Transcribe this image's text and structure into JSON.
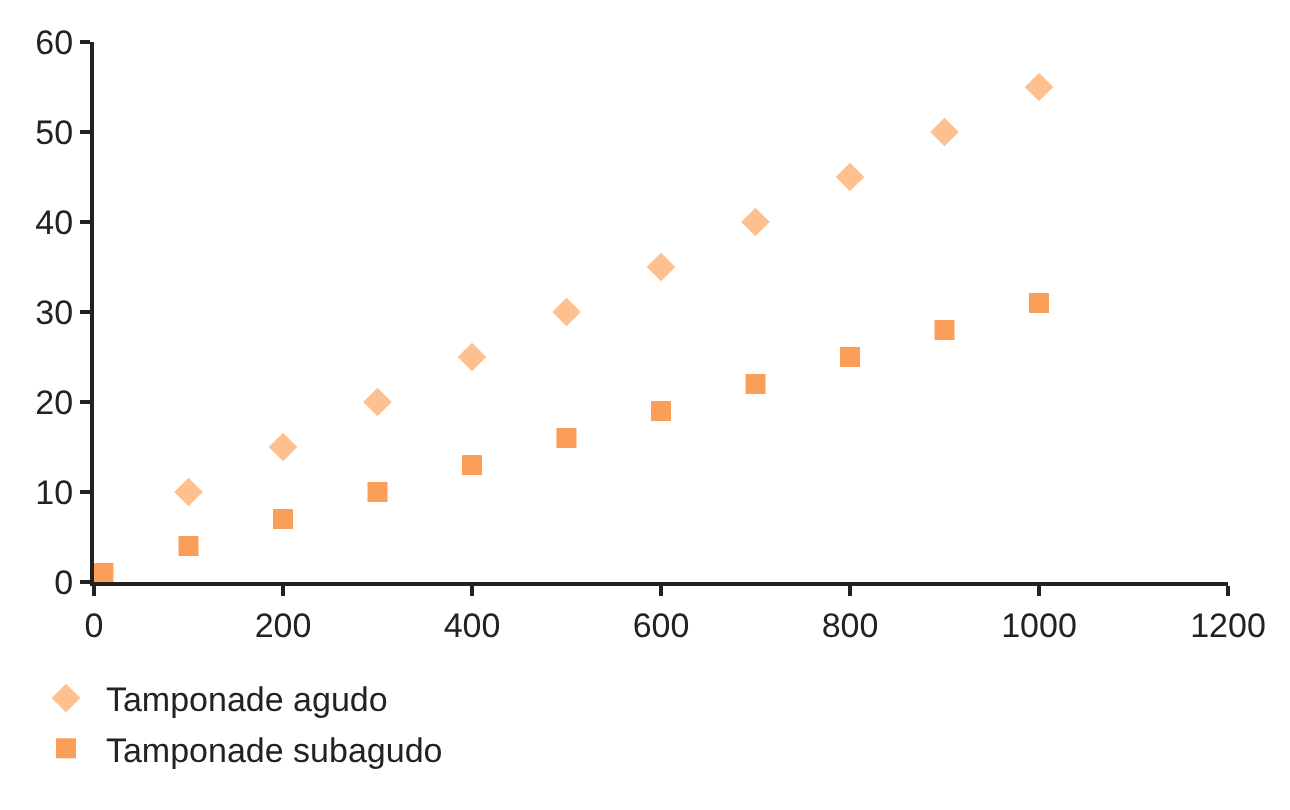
{
  "chart_data": {
    "type": "scatter",
    "xlim": [
      0,
      1200
    ],
    "xticks": [
      0,
      200,
      400,
      600,
      800,
      1000,
      1200
    ],
    "ylim": [
      0,
      60
    ],
    "yticks": [
      0,
      10,
      20,
      30,
      40,
      50,
      60
    ],
    "legend": "bottom",
    "series": [
      {
        "name": "Tamponade agudo",
        "color": "#fdc08e",
        "marker": "diamond",
        "x": [
          100,
          200,
          300,
          400,
          500,
          600,
          700,
          800,
          900,
          1000
        ],
        "values": [
          10,
          15,
          20,
          25,
          30,
          35,
          40,
          45,
          50,
          55
        ]
      },
      {
        "name": "Tamponade subagudo",
        "color": "#fb9e58",
        "marker": "square",
        "x": [
          10,
          100,
          200,
          300,
          400,
          500,
          600,
          700,
          800,
          900,
          1000
        ],
        "values": [
          1,
          4,
          7,
          10,
          13,
          16,
          19,
          22,
          25,
          28,
          31
        ]
      }
    ]
  }
}
